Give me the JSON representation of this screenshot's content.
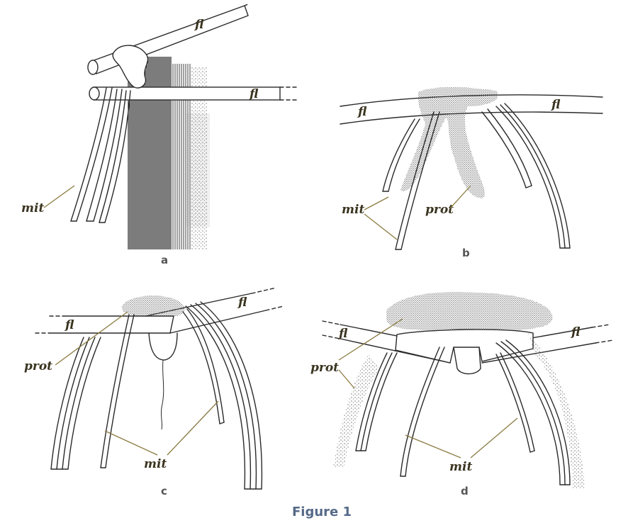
{
  "figure": {
    "caption": "Figure 1",
    "panels": [
      {
        "id": "a",
        "letter": "a",
        "labels": {
          "fl_top": "fl",
          "fl_mid": "fl",
          "mit": "mit"
        }
      },
      {
        "id": "b",
        "letter": "b",
        "labels": {
          "fl_left": "fl",
          "fl_right": "fl",
          "mit": "mit",
          "prot": "prot"
        }
      },
      {
        "id": "c",
        "letter": "c",
        "labels": {
          "fl_left": "fl",
          "fl_right": "fl",
          "prot": "prot",
          "mit": "mit"
        }
      },
      {
        "id": "d",
        "letter": "d",
        "labels": {
          "fl_left": "fl",
          "fl_right": "fl",
          "prot": "prot",
          "mit": "mit"
        }
      }
    ],
    "colors": {
      "ink": "#2a2a2a",
      "label": "#3a3420",
      "leader": "#8a7a40",
      "caption": "#556a88",
      "stipple": "#777"
    }
  }
}
